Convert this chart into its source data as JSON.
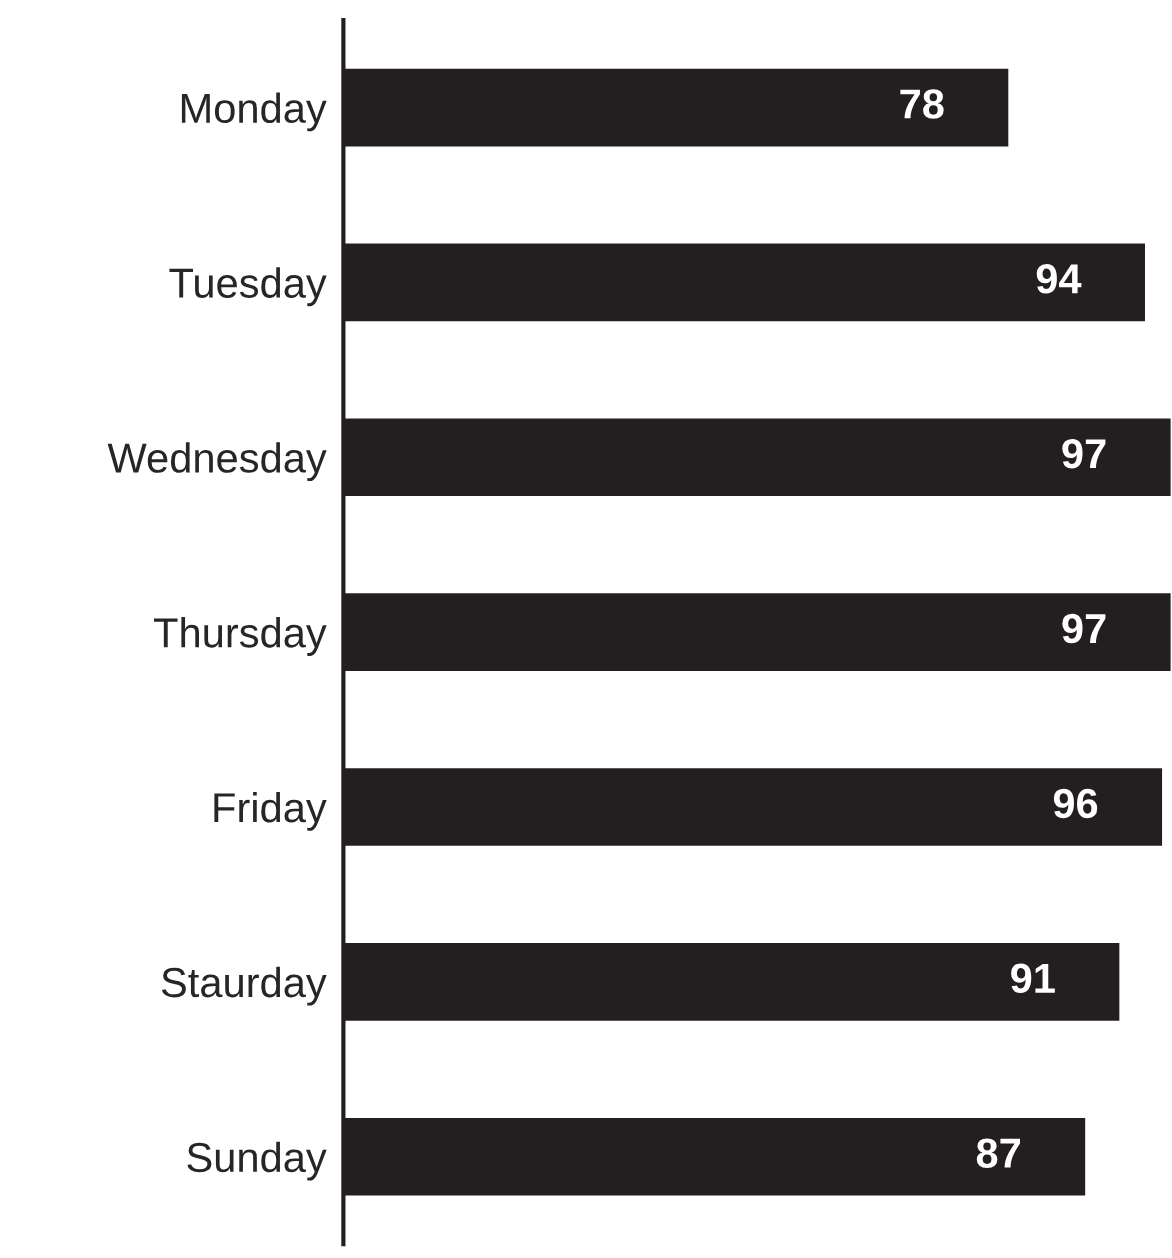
{
  "chart_data": {
    "type": "bar",
    "orientation": "horizontal",
    "categories": [
      "Monday",
      "Tuesday",
      "Wednesday",
      "Thursday",
      "Friday",
      "Staurday",
      "Sunday"
    ],
    "values": [
      78,
      94,
      97,
      97,
      96,
      91,
      87
    ],
    "color": "#231f20",
    "data_labels": true,
    "grid": false,
    "legend": false
  }
}
